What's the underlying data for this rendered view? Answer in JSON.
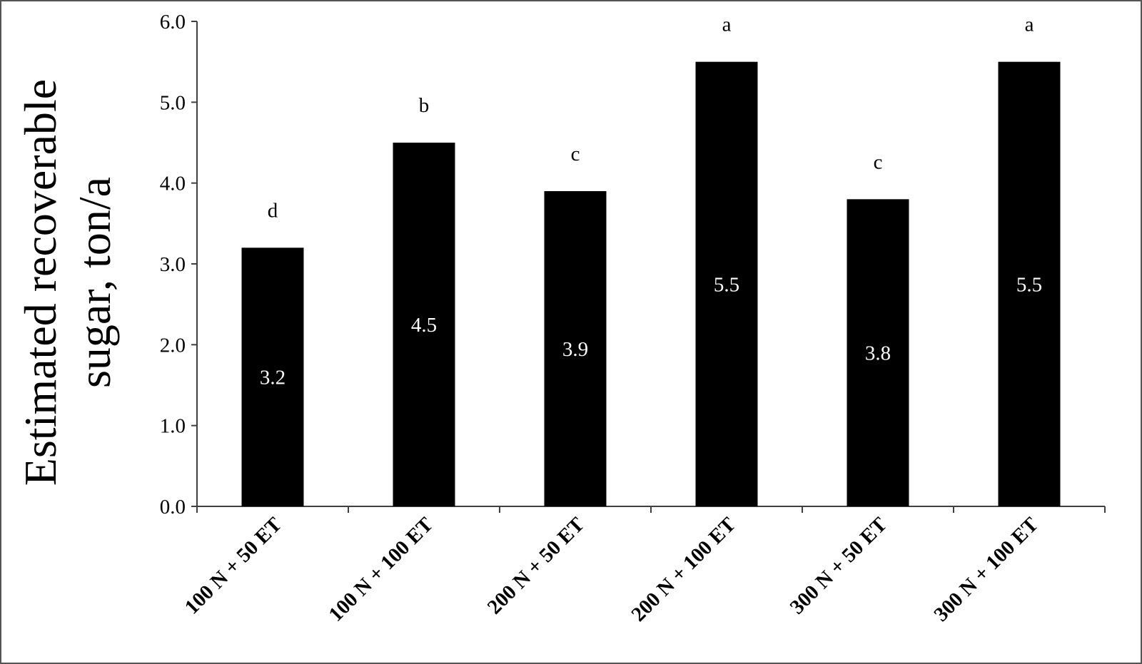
{
  "chart_data": {
    "type": "bar",
    "title": "",
    "xlabel": "",
    "ylabel": "Estimated recoverable sugar, ton/a",
    "ylabel_lines": [
      "Estimated recoverable",
      "sugar, ton/a"
    ],
    "categories": [
      "100 N + 50 ET",
      "100 N + 100 ET",
      "200 N + 50 ET",
      "200 N + 100 ET",
      "300 N + 50 ET",
      "300 N + 100 ET"
    ],
    "values": [
      3.2,
      4.5,
      3.9,
      5.5,
      3.8,
      5.5
    ],
    "data_labels": [
      "3.2",
      "4.5",
      "3.9",
      "5.5",
      "3.8",
      "5.5"
    ],
    "significance_letters": [
      "d",
      "b",
      "c",
      "a",
      "c",
      "a"
    ],
    "ylim": [
      0,
      6
    ],
    "yticks": [
      "0.0",
      "1.0",
      "2.0",
      "3.0",
      "4.0",
      "5.0",
      "6.0"
    ],
    "grid": false,
    "legend": "none",
    "colors": {
      "bar": "#000000",
      "data_label": "#ffffff",
      "axis": "#404040"
    }
  }
}
